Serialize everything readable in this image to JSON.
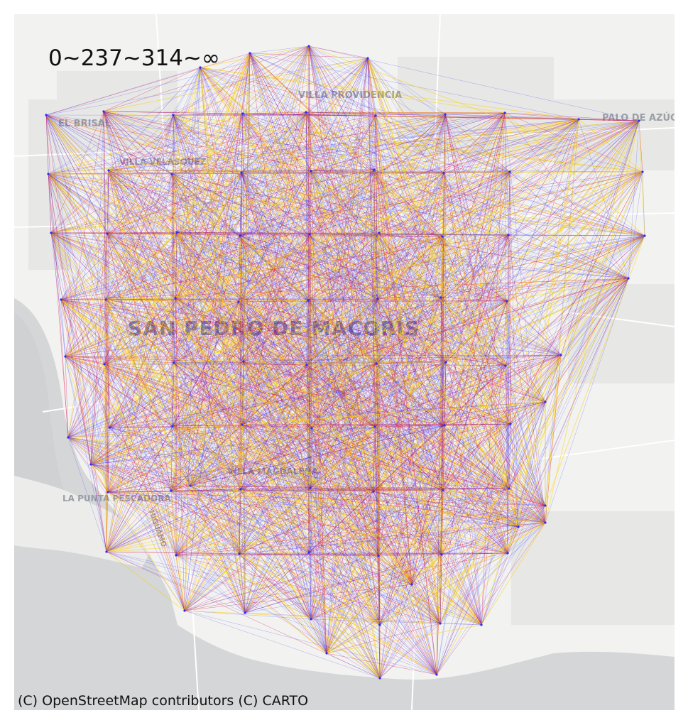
{
  "legend": {
    "label": "0~237~314~∞"
  },
  "attribution": "(C) OpenStreetMap contributors (C) CARTO",
  "place_labels": [
    {
      "text": "SAN PEDRO DE MACORÍS"
    },
    {
      "text": "VILLA PROVIDENCIA"
    },
    {
      "text": "EL BRISAL"
    },
    {
      "text": "VILLA VELÁSQUEZ"
    },
    {
      "text": "PALO DE AZÚCAR"
    },
    {
      "text": "LA PUNTA PESCADORA"
    },
    {
      "text": "VILLA MAGDALENA"
    },
    {
      "text": "HIGÜAMO"
    }
  ],
  "flow_colors": {
    "low": "#2b2bff",
    "mid": "#d41450",
    "high": "#ffd200"
  },
  "basemap_colors": {
    "land": "#f2f2f0",
    "water": "#d4d6d8",
    "roads": "#ffffff",
    "blocks": "#e6e6e4"
  }
}
